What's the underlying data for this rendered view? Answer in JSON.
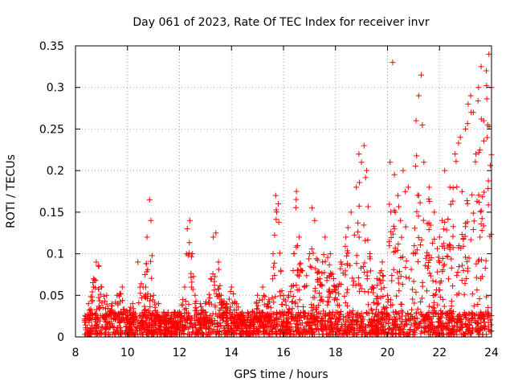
{
  "chart_data": {
    "type": "scatter",
    "title": "Day 061 of 2023, Rate Of TEC Index for receiver invr",
    "xlabel": "GPS time / hours",
    "ylabel": "ROTI / TECUs",
    "xlim": [
      8,
      24
    ],
    "ylim": [
      0,
      0.35
    ],
    "x_ticks": [
      8,
      10,
      12,
      14,
      16,
      18,
      20,
      22,
      24
    ],
    "x_tick_labels": [
      "8",
      "10",
      "12",
      "14",
      "16",
      "18",
      "20",
      "22",
      "24"
    ],
    "y_ticks": [
      0,
      0.05,
      0.1,
      0.15,
      0.2,
      0.25,
      0.3,
      0.35
    ],
    "y_tick_labels": [
      "0",
      "0.05",
      "0.1",
      "0.15",
      "0.2",
      "0.25",
      "0.3",
      "0.35"
    ],
    "grid": true,
    "marker": "+",
    "series": [
      {
        "name": "ROTI",
        "color": "#ff0000",
        "x": [
          8.35,
          8.5,
          8.7,
          8.8,
          8.9,
          9.0,
          9.2,
          9.4,
          9.6,
          9.8,
          10.0,
          10.2,
          10.4,
          10.6,
          10.75,
          10.85,
          10.9,
          11.0,
          11.2,
          11.4,
          11.6,
          11.8,
          12.0,
          12.2,
          12.3,
          12.4,
          12.5,
          12.6,
          12.8,
          13.0,
          13.2,
          13.3,
          13.4,
          13.5,
          13.6,
          13.8,
          14.0,
          14.2,
          14.4,
          14.6,
          14.8,
          15.0,
          15.2,
          15.4,
          15.6,
          15.7,
          15.8,
          15.9,
          16.0,
          16.2,
          16.4,
          16.5,
          16.6,
          16.8,
          17.0,
          17.1,
          17.2,
          17.4,
          17.5,
          17.6,
          17.8,
          18.0,
          18.2,
          18.4,
          18.6,
          18.8,
          18.9,
          19.0,
          19.1,
          19.2,
          19.4,
          19.6,
          19.8,
          20.0,
          20.1,
          20.2,
          20.3,
          20.4,
          20.5,
          20.6,
          20.8,
          21.0,
          21.1,
          21.2,
          21.3,
          21.4,
          21.6,
          21.8,
          22.0,
          22.1,
          22.2,
          22.4,
          22.6,
          22.8,
          23.0,
          23.1,
          23.2,
          23.3,
          23.4,
          23.5,
          23.6,
          23.7,
          23.8,
          23.9,
          24.0
        ],
        "y": [
          0.02,
          0.04,
          0.07,
          0.09,
          0.085,
          0.06,
          0.05,
          0.04,
          0.05,
          0.06,
          0.03,
          0.04,
          0.09,
          0.06,
          0.12,
          0.165,
          0.14,
          0.05,
          0.04,
          0.03,
          0.02,
          0.03,
          0.03,
          0.06,
          0.13,
          0.14,
          0.1,
          0.05,
          0.04,
          0.04,
          0.07,
          0.12,
          0.125,
          0.09,
          0.05,
          0.04,
          0.06,
          0.04,
          0.03,
          0.02,
          0.03,
          0.05,
          0.06,
          0.04,
          0.1,
          0.17,
          0.16,
          0.08,
          0.05,
          0.05,
          0.1,
          0.175,
          0.12,
          0.06,
          0.1,
          0.155,
          0.14,
          0.07,
          0.09,
          0.12,
          0.1,
          0.06,
          0.09,
          0.12,
          0.15,
          0.18,
          0.22,
          0.21,
          0.23,
          0.2,
          0.06,
          0.07,
          0.09,
          0.05,
          0.21,
          0.33,
          0.15,
          0.17,
          0.14,
          0.2,
          0.18,
          0.1,
          0.26,
          0.29,
          0.315,
          0.21,
          0.18,
          0.15,
          0.12,
          0.14,
          0.2,
          0.18,
          0.22,
          0.24,
          0.25,
          0.28,
          0.29,
          0.27,
          0.22,
          0.3,
          0.325,
          0.26,
          0.32,
          0.34,
          0.3
        ],
        "baseline_band": [
          0.0,
          0.03
        ]
      }
    ]
  }
}
